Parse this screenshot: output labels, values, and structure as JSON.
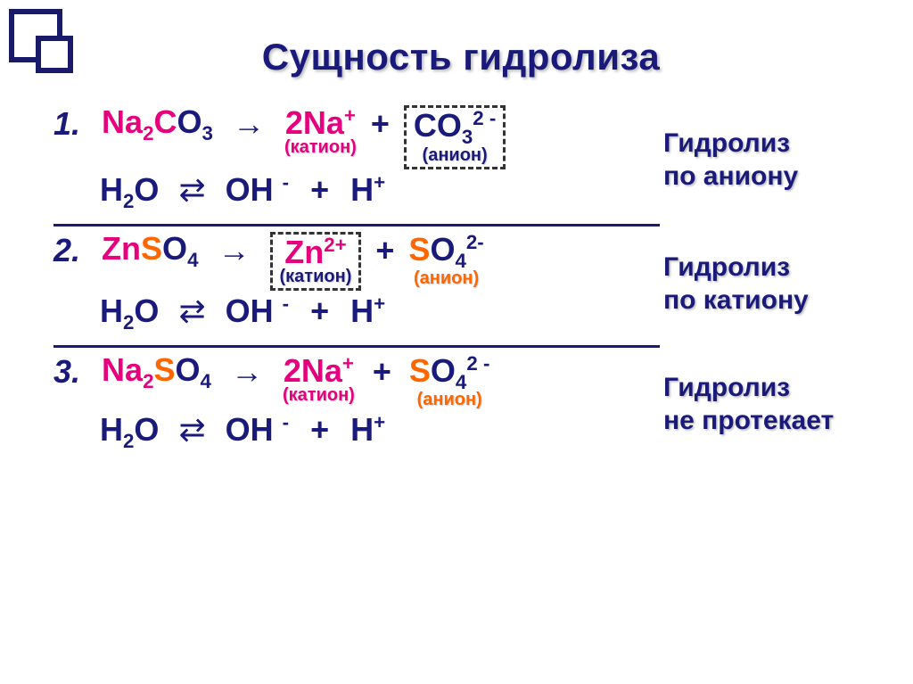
{
  "title": "Сущность гидролиза",
  "colors": {
    "navy": "#1a1a7a",
    "pink": "#e6007e",
    "orange": "#ff6600",
    "cation_label_color": "#e6007e",
    "anion_label_color_navy": "#1a1a7a",
    "anion_label_color_orange": "#ff6600"
  },
  "reactions": [
    {
      "number": "1.",
      "salt_html": "Na<sub>2</sub>CO<sub>3</sub>",
      "cation": "2Na<sup>+</sup>",
      "cation_label": "(катион)",
      "anion": "CO<sub>3</sub><sup>2 -</sup>",
      "anion_label": "(анион)",
      "boxed": "anion",
      "water_line": {
        "h2o": "H<sub>2</sub>O",
        "oh": "OH <sup>-</sup>",
        "h": "H<sup>+</sup>"
      },
      "side": "Гидролиз\nпо аниону"
    },
    {
      "number": "2.",
      "salt_html": "ZnSO<sub>4</sub>",
      "cation": "Zn<sup>2+</sup>",
      "cation_label": "(катион)",
      "anion": "SO<sub>4</sub><sup>2-</sup>",
      "anion_label": "(анион)",
      "boxed": "cation",
      "water_line": {
        "h2o": "H<sub>2</sub>O",
        "oh": "OH <sup>-</sup>",
        "h": "H<sup>+</sup>"
      },
      "side": "Гидролиз\nпо катиону"
    },
    {
      "number": "3.",
      "salt_html": "Na<sub>2</sub>SO<sub>4</sub>",
      "cation": "2Na<sup>+</sup>",
      "cation_label": "(катион)",
      "anion": "SO<sub>4</sub><sup>2 -</sup>",
      "anion_label": "(анион)",
      "boxed": "none",
      "water_line": {
        "h2o": "H<sub>2</sub>O",
        "oh": "OH <sup>-</sup>",
        "h": "H<sup>+</sup>"
      },
      "side": "Гидролиз\nне протекает"
    }
  ]
}
